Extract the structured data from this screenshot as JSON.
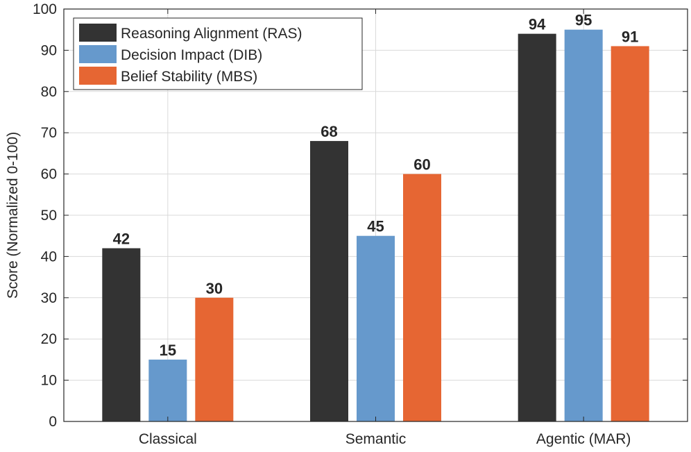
{
  "chart_data": {
    "type": "bar",
    "title": "",
    "xlabel": "",
    "ylabel": "Score (Normalized 0-100)",
    "ylim": [
      0,
      100
    ],
    "yticks": [
      0,
      10,
      20,
      30,
      40,
      50,
      60,
      70,
      80,
      90,
      100
    ],
    "grid": true,
    "legend_position": "top-left",
    "categories": [
      "Classical",
      "Semantic",
      "Agentic (MAR)"
    ],
    "series": [
      {
        "name": "Reasoning Alignment (RAS)",
        "color": "#333333",
        "values": [
          42,
          68,
          94
        ]
      },
      {
        "name": "Decision Impact (DIB)",
        "color": "#6699cc",
        "values": [
          15,
          45,
          95
        ]
      },
      {
        "name": "Belief Stability (MBS)",
        "color": "#e66633",
        "values": [
          30,
          60,
          91
        ]
      }
    ]
  }
}
